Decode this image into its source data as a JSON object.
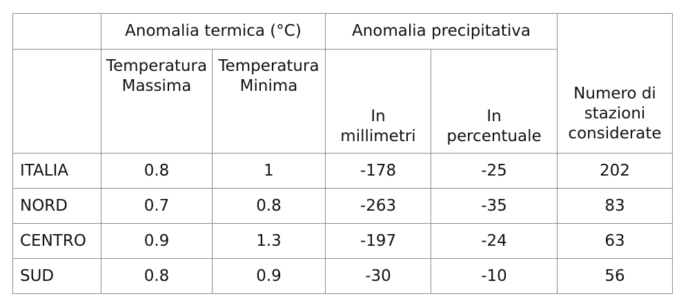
{
  "header": {
    "group_temp": "Anomalia termica (°C)",
    "group_precip": "Anomalia precipitativa",
    "stations": [
      "Numero di",
      "stazioni",
      "considerate"
    ],
    "tmax": [
      "Temperatura",
      "Massima"
    ],
    "tmin": [
      "Temperatura",
      "Minima"
    ],
    "mm": [
      "In",
      "millimetri"
    ],
    "pct": [
      "In",
      "percentuale"
    ]
  },
  "rows": [
    {
      "region": "ITALIA",
      "tmax": "0.8",
      "tmin": "1",
      "mm": "-178",
      "pct": "-25",
      "stations": "202"
    },
    {
      "region": "NORD",
      "tmax": "0.7",
      "tmin": "0.8",
      "mm": "-263",
      "pct": "-35",
      "stations": "83"
    },
    {
      "region": "CENTRO",
      "tmax": "0.9",
      "tmin": "1.3",
      "mm": "-197",
      "pct": "-24",
      "stations": "63"
    },
    {
      "region": "SUD",
      "tmax": "0.8",
      "tmin": "0.9",
      "mm": "-30",
      "pct": "-10",
      "stations": "56"
    }
  ]
}
